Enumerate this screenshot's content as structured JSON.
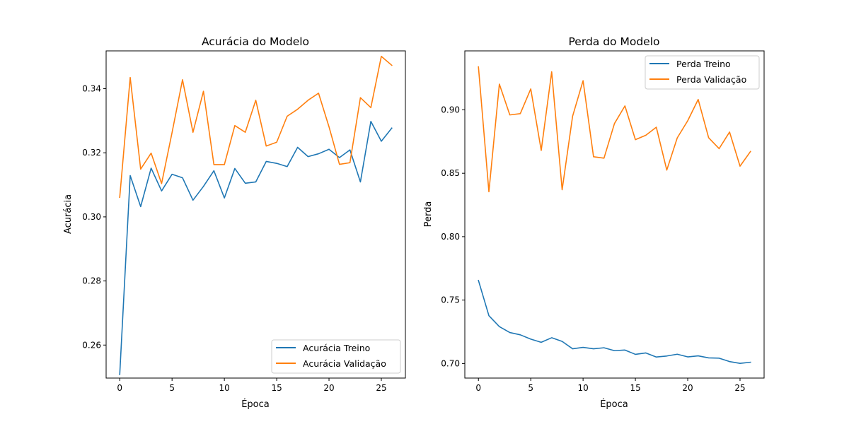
{
  "chart_data": [
    {
      "type": "line",
      "title": "Acurácia do Modelo",
      "xlabel": "Época",
      "ylabel": "Acurácia",
      "xlim": [
        -1.3,
        27.3
      ],
      "ylim": [
        0.2497,
        0.3518
      ],
      "xticks": [
        0,
        5,
        10,
        15,
        20,
        25
      ],
      "yticks": [
        0.26,
        0.28,
        0.3,
        0.32,
        0.34
      ],
      "ytick_labels": [
        "0.26",
        "0.28",
        "0.30",
        "0.32",
        "0.34"
      ],
      "legend_position": "lower right",
      "x": [
        0,
        1,
        2,
        3,
        4,
        5,
        6,
        7,
        8,
        9,
        10,
        11,
        12,
        13,
        14,
        15,
        16,
        17,
        18,
        19,
        20,
        21,
        22,
        23,
        24,
        25,
        26
      ],
      "series": [
        {
          "name": "Acurácia Treino",
          "color": "#1f77b4",
          "values": [
            0.2508,
            0.3129,
            0.3032,
            0.3152,
            0.3081,
            0.3133,
            0.3122,
            0.3052,
            0.3095,
            0.3144,
            0.3059,
            0.3151,
            0.3105,
            0.3109,
            0.3173,
            0.3167,
            0.3157,
            0.3217,
            0.3188,
            0.3197,
            0.3211,
            0.3185,
            0.3209,
            0.3109,
            0.3298,
            0.3236,
            0.3277
          ]
        },
        {
          "name": "Acurácia Validação",
          "color": "#ff7f0e",
          "values": [
            0.3061,
            0.3435,
            0.3149,
            0.3199,
            0.3104,
            0.3263,
            0.3428,
            0.3264,
            0.3392,
            0.3163,
            0.3163,
            0.3285,
            0.3264,
            0.3364,
            0.3221,
            0.3233,
            0.3314,
            0.3336,
            0.3364,
            0.3386,
            0.3281,
            0.3164,
            0.3169,
            0.3372,
            0.3341,
            0.3501,
            0.3473
          ]
        }
      ]
    },
    {
      "type": "line",
      "title": "Perda do Modelo",
      "xlabel": "Época",
      "ylabel": "Perda",
      "xlim": [
        -1.3,
        27.3
      ],
      "ylim": [
        0.6885,
        0.9465
      ],
      "xticks": [
        0,
        5,
        10,
        15,
        20,
        25
      ],
      "yticks": [
        0.7,
        0.75,
        0.8,
        0.85,
        0.9
      ],
      "ytick_labels": [
        "0.70",
        "0.75",
        "0.80",
        "0.85",
        "0.90"
      ],
      "legend_position": "upper right",
      "x": [
        0,
        1,
        2,
        3,
        4,
        5,
        6,
        7,
        8,
        9,
        10,
        11,
        12,
        13,
        14,
        15,
        16,
        17,
        18,
        19,
        20,
        21,
        22,
        23,
        24,
        25,
        26
      ],
      "series": [
        {
          "name": "Perda Treino",
          "color": "#1f77b4",
          "values": [
            0.7655,
            0.7377,
            0.7291,
            0.7244,
            0.7226,
            0.7192,
            0.7167,
            0.7203,
            0.7174,
            0.7116,
            0.7127,
            0.7116,
            0.7124,
            0.7101,
            0.7106,
            0.7072,
            0.7083,
            0.7051,
            0.7059,
            0.7073,
            0.7052,
            0.706,
            0.7044,
            0.7042,
            0.7015,
            0.7001,
            0.701
          ]
        },
        {
          "name": "Perda Validação",
          "color": "#ff7f0e",
          "values": [
            0.9339,
            0.8354,
            0.9203,
            0.896,
            0.897,
            0.9165,
            0.868,
            0.93,
            0.837,
            0.895,
            0.923,
            0.863,
            0.8619,
            0.8892,
            0.9031,
            0.8765,
            0.88,
            0.8863,
            0.8525,
            0.8779,
            0.8914,
            0.9082,
            0.878,
            0.8694,
            0.8825,
            0.8556,
            0.8672
          ]
        }
      ]
    }
  ]
}
